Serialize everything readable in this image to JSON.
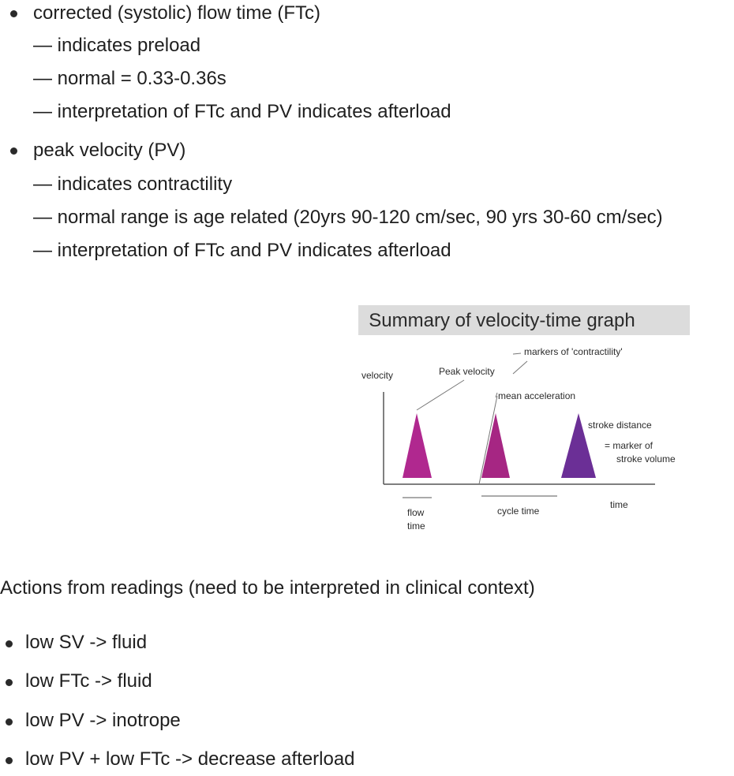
{
  "section1": {
    "title": "corrected (systolic) flow time (FTc)",
    "items": [
      "— indicates preload",
      "— normal = 0.33-0.36s",
      "— interpretation of FTc and PV indicates afterload"
    ]
  },
  "section2": {
    "title": "peak velocity (PV)",
    "items": [
      "— indicates contractility",
      "— normal range is age related (20yrs 90-120 cm/sec, 90 yrs 30-60 cm/sec)",
      "— interpretation of FTc and PV indicates afterload"
    ]
  },
  "diagram": {
    "title": "Summary of velocity-time graph",
    "labels": {
      "velocity": "velocity",
      "peak_velocity": "Peak velocity",
      "markers": "markers of 'contractility'",
      "mean_acceleration": "mean acceleration",
      "stroke_distance": "stroke distance",
      "marker_of": "= marker of",
      "stroke_volume": "stroke volume",
      "time": "time",
      "flow": "flow",
      "flow_time": "time",
      "cycle_time": "cycle time"
    },
    "colors": {
      "title_bg": "#dcdcdc",
      "peak1": "#b0288f",
      "peak2": "#a62683",
      "peak3": "#6b2f96"
    }
  },
  "actions": {
    "heading": "Actions from readings (need to be interpreted in clinical context)",
    "items": [
      "low SV -> fluid",
      "low FTc -> fluid",
      "low PV -> inotrope",
      "low PV + low FTc -> decrease afterload"
    ]
  }
}
